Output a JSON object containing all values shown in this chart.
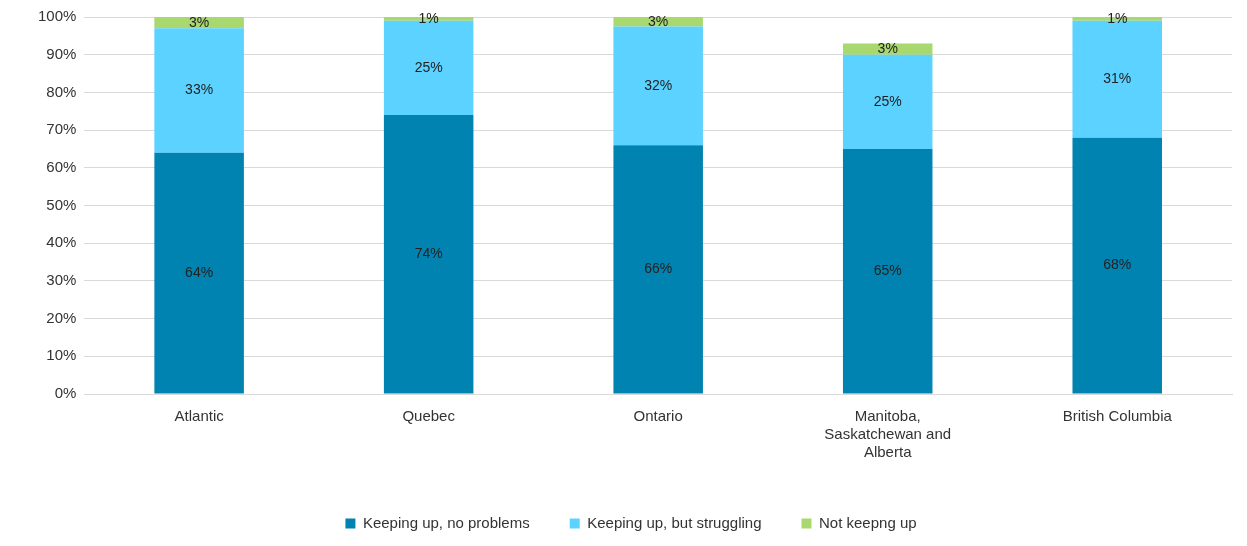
{
  "chart_data": {
    "type": "bar",
    "stacked": true,
    "categories": [
      "Atlantic",
      "Quebec",
      "Ontario",
      "Manitoba, Saskatchewan and Alberta",
      "British Columbia"
    ],
    "series": [
      {
        "name": "Keeping up, no problems",
        "color": "#0083b0",
        "values": [
          64,
          74,
          66,
          65,
          68
        ],
        "value_labels": [
          "64%",
          "74%",
          "66%",
          "65%",
          "68%"
        ]
      },
      {
        "name": "Keeping up, but struggling",
        "color": "#5bd2ff",
        "values": [
          33,
          25,
          31.5,
          25,
          31
        ],
        "value_labels": [
          "33%",
          "25%",
          "32%",
          "25%",
          "31%"
        ]
      },
      {
        "name": "Not keepng up",
        "color": "#a9d86e",
        "values": [
          3,
          1,
          2.5,
          3,
          1
        ],
        "value_labels": [
          "3%",
          "1%",
          "3%",
          "3%",
          "1%"
        ]
      }
    ],
    "ylim": [
      0,
      100
    ],
    "yticks": [
      {
        "value": 0,
        "label": "0%"
      },
      {
        "value": 10,
        "label": "10%"
      },
      {
        "value": 20,
        "label": "20%"
      },
      {
        "value": 30,
        "label": "30%"
      },
      {
        "value": 40,
        "label": "40%"
      },
      {
        "value": 50,
        "label": "50%"
      },
      {
        "value": 60,
        "label": "60%"
      },
      {
        "value": 70,
        "label": "70%"
      },
      {
        "value": 80,
        "label": "80%"
      },
      {
        "value": 90,
        "label": "90%"
      },
      {
        "value": 100,
        "label": "100%"
      }
    ],
    "grid": "y",
    "legend": "bottom"
  }
}
